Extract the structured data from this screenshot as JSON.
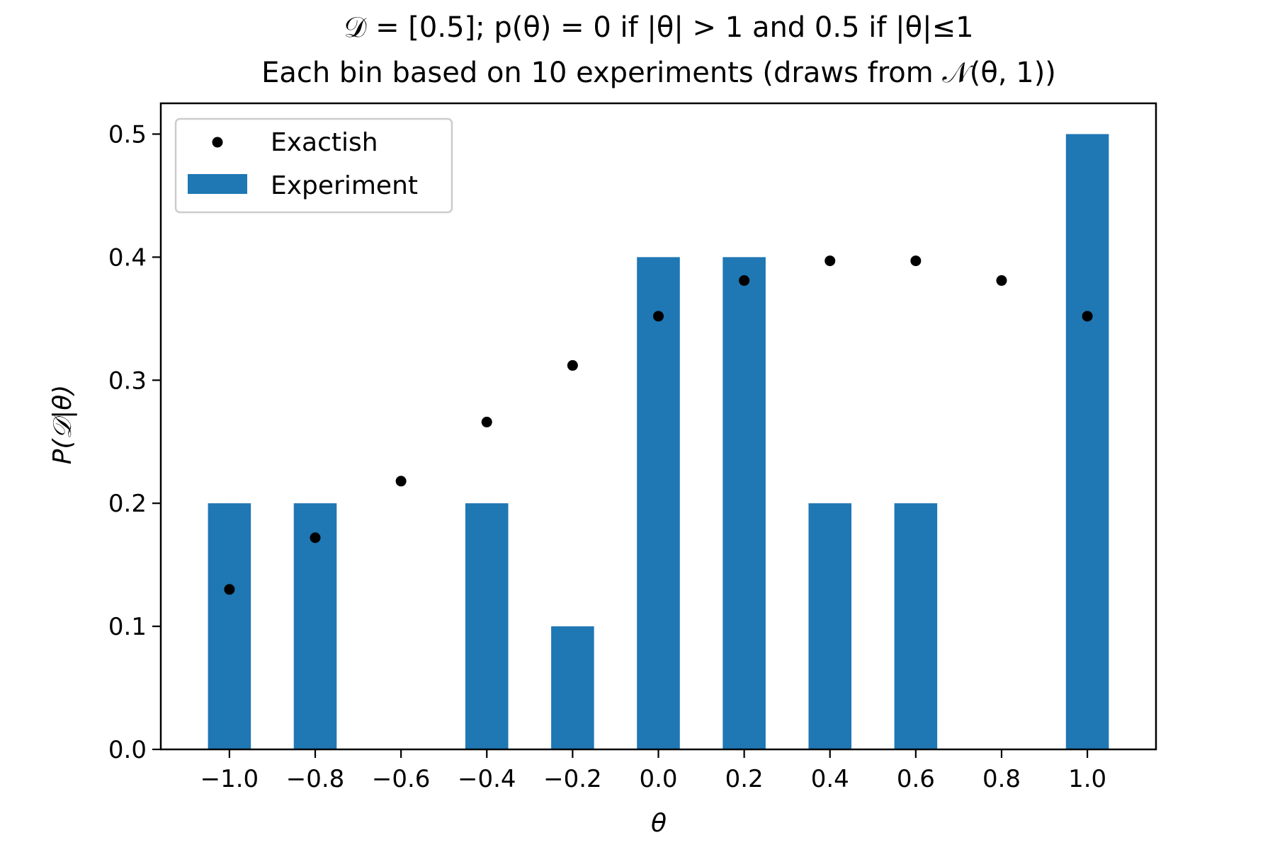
{
  "chart_data": {
    "type": "bar",
    "title": "𝒟 = [0.5]; p(θ) = 0 if |θ| > 1 and 0.5 if |θ|≤1",
    "subtitle": "Each bin based on 10 experiments (draws from 𝒩(θ, 1))",
    "xlabel": "θ",
    "ylabel": "P(𝒟|θ)",
    "xlim": [
      -1.16,
      1.16
    ],
    "ylim": [
      0.0,
      0.525
    ],
    "bar_width": 0.1,
    "grid": false,
    "legend_position": "top-left",
    "x_ticks": [
      -1.0,
      -0.8,
      -0.6,
      -0.4,
      -0.2,
      0.0,
      0.2,
      0.4,
      0.6,
      0.8,
      1.0
    ],
    "x_tick_labels": [
      "−1.0",
      "−0.8",
      "−0.6",
      "−0.4",
      "−0.2",
      "0.0",
      "0.2",
      "0.4",
      "0.6",
      "0.8",
      "1.0"
    ],
    "y_ticks": [
      0.0,
      0.1,
      0.2,
      0.3,
      0.4,
      0.5
    ],
    "y_tick_labels": [
      "0.0",
      "0.1",
      "0.2",
      "0.3",
      "0.4",
      "0.5"
    ],
    "series": [
      {
        "name": "Exactish",
        "kind": "scatter",
        "color": "#000000",
        "x": [
          -1.0,
          -0.8,
          -0.6,
          -0.4,
          -0.2,
          0.0,
          0.2,
          0.4,
          0.6,
          0.8,
          1.0
        ],
        "values": [
          0.13,
          0.172,
          0.218,
          0.266,
          0.312,
          0.352,
          0.381,
          0.397,
          0.397,
          0.381,
          0.352
        ]
      },
      {
        "name": "Experiment",
        "kind": "bar",
        "color": "#1f77b4",
        "x": [
          -1.0,
          -0.8,
          -0.6,
          -0.4,
          -0.2,
          0.0,
          0.2,
          0.4,
          0.6,
          0.8,
          1.0
        ],
        "values": [
          0.2,
          0.2,
          0.0,
          0.2,
          0.1,
          0.4,
          0.4,
          0.2,
          0.2,
          0.0,
          0.5
        ]
      }
    ]
  }
}
